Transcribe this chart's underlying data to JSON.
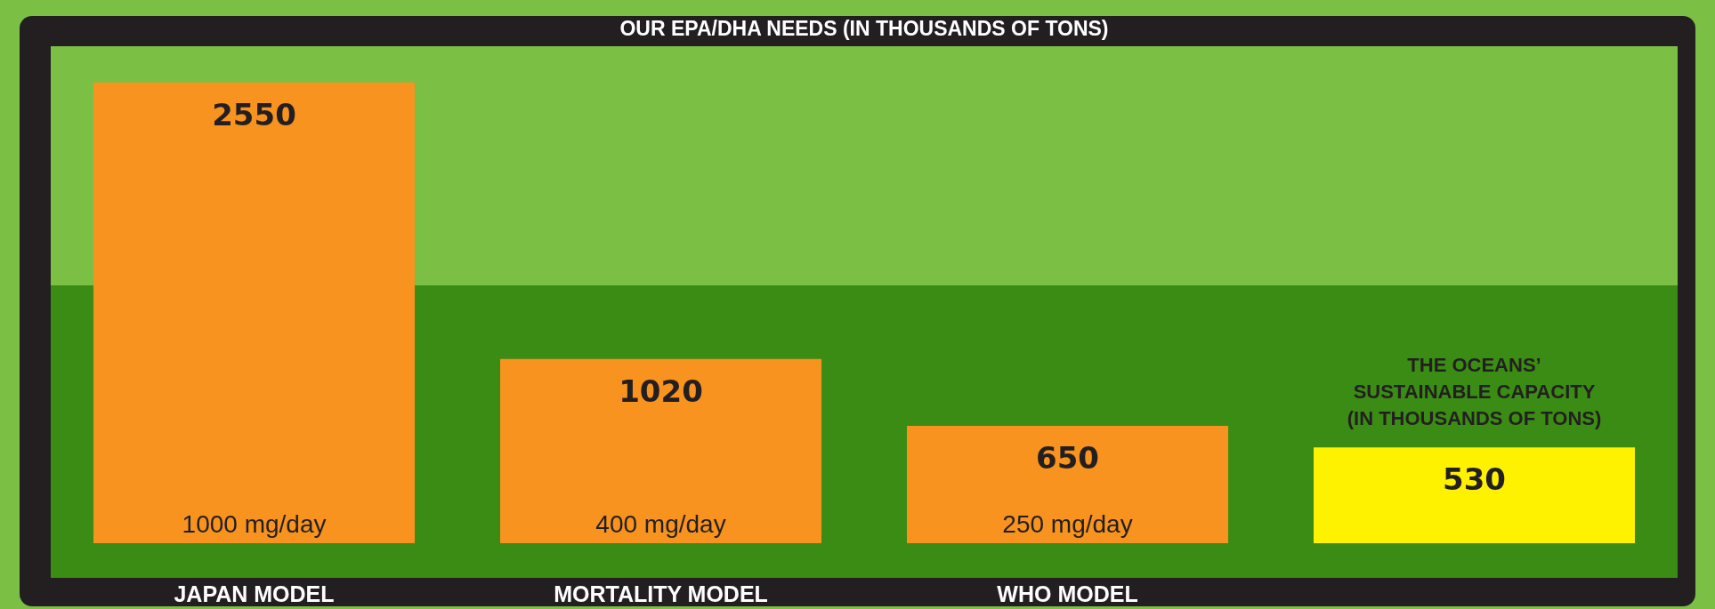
{
  "chart_data": {
    "type": "bar",
    "title": "OUR EPA/DHA NEEDS (IN THOUSANDS OF TONS)",
    "categories": [
      "JAPAN MODEL",
      "MORTALITY MODEL",
      "WHO MODEL",
      null
    ],
    "values": [
      2550,
      1020,
      650,
      530
    ],
    "colors": [
      "#f7931e",
      "#f7931e",
      "#f7931e",
      "#fff200"
    ],
    "data_labels": true,
    "grid": false,
    "legend": false,
    "annotations": [
      "1000 mg/day",
      "400 mg/day",
      "250 mg/day",
      "THE OCEANS’ SUSTAINABLE CAPACITY (IN THOUSANDS OF TONS)"
    ]
  }
}
